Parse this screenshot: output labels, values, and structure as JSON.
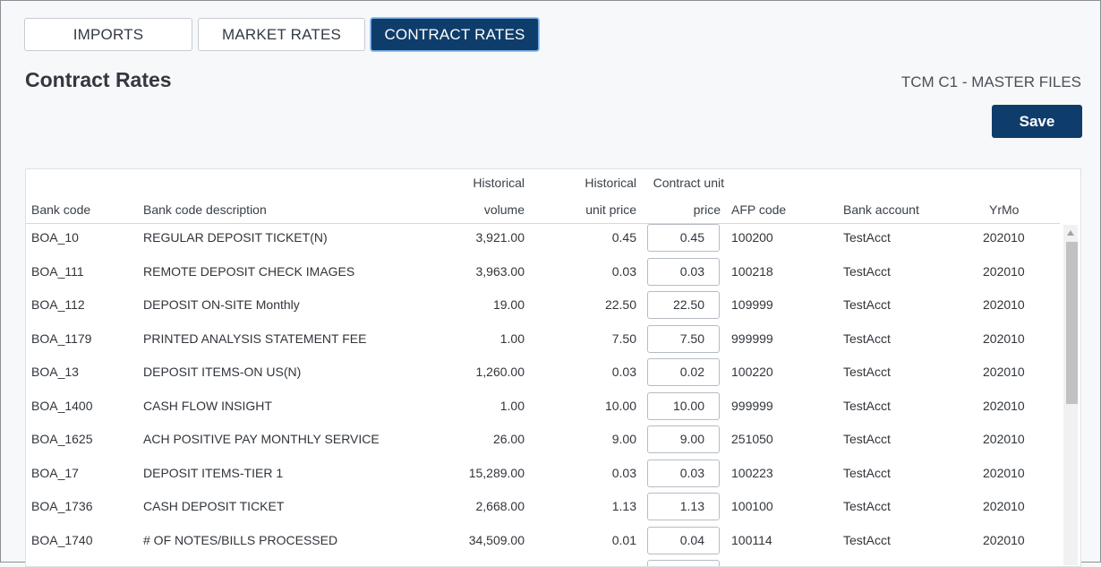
{
  "tabs": [
    {
      "label": "IMPORTS",
      "active": false
    },
    {
      "label": "MARKET RATES",
      "active": false
    },
    {
      "label": "CONTRACT RATES",
      "active": true
    }
  ],
  "page": {
    "title": "Contract Rates",
    "subtitle": "TCM C1 - MASTER FILES",
    "save_label": "Save"
  },
  "table": {
    "headers": {
      "bank_code": "Bank code",
      "description": "Bank code description",
      "volume_1": "Historical",
      "volume_2": "volume",
      "hist_price_1": "Historical",
      "hist_price_2": "unit price",
      "contract_price_1": "Contract unit",
      "contract_price_2": "price",
      "afp_code": "AFP code",
      "bank_account": "Bank account",
      "yrmo": "YrMo"
    },
    "rows": [
      {
        "bank_code": "BOA_10",
        "description": "REGULAR DEPOSIT TICKET(N)",
        "volume": "3,921.00",
        "hist_price": "0.45",
        "contract_price": "0.45",
        "afp_code": "100200",
        "bank_account": "TestAcct",
        "yrmo": "202010"
      },
      {
        "bank_code": "BOA_111",
        "description": "REMOTE DEPOSIT CHECK IMAGES",
        "volume": "3,963.00",
        "hist_price": "0.03",
        "contract_price": "0.03",
        "afp_code": "100218",
        "bank_account": "TestAcct",
        "yrmo": "202010"
      },
      {
        "bank_code": "BOA_112",
        "description": "DEPOSIT ON-SITE Monthly",
        "volume": "19.00",
        "hist_price": "22.50",
        "contract_price": "22.50",
        "afp_code": "109999",
        "bank_account": "TestAcct",
        "yrmo": "202010"
      },
      {
        "bank_code": "BOA_1179",
        "description": "PRINTED ANALYSIS STATEMENT FEE",
        "volume": "1.00",
        "hist_price": "7.50",
        "contract_price": "7.50",
        "afp_code": "999999",
        "bank_account": "TestAcct",
        "yrmo": "202010"
      },
      {
        "bank_code": "BOA_13",
        "description": "DEPOSIT ITEMS-ON US(N)",
        "volume": "1,260.00",
        "hist_price": "0.03",
        "contract_price": "0.02",
        "afp_code": "100220",
        "bank_account": "TestAcct",
        "yrmo": "202010"
      },
      {
        "bank_code": "BOA_1400",
        "description": "CASH FLOW INSIGHT",
        "volume": "1.00",
        "hist_price": "10.00",
        "contract_price": "10.00",
        "afp_code": "999999",
        "bank_account": "TestAcct",
        "yrmo": "202010"
      },
      {
        "bank_code": "BOA_1625",
        "description": "ACH POSITIVE PAY MONTHLY SERVICE",
        "volume": "26.00",
        "hist_price": "9.00",
        "contract_price": "9.00",
        "afp_code": "251050",
        "bank_account": "TestAcct",
        "yrmo": "202010"
      },
      {
        "bank_code": "BOA_17",
        "description": "DEPOSIT ITEMS-TIER 1",
        "volume": "15,289.00",
        "hist_price": "0.03",
        "contract_price": "0.03",
        "afp_code": "100223",
        "bank_account": "TestAcct",
        "yrmo": "202010"
      },
      {
        "bank_code": "BOA_1736",
        "description": "CASH DEPOSIT TICKET",
        "volume": "2,668.00",
        "hist_price": "1.13",
        "contract_price": "1.13",
        "afp_code": "100100",
        "bank_account": "TestAcct",
        "yrmo": "202010"
      },
      {
        "bank_code": "BOA_1740",
        "description": "# OF NOTES/BILLS PROCESSED",
        "volume": "34,509.00",
        "hist_price": "0.01",
        "contract_price": "0.04",
        "afp_code": "100114",
        "bank_account": "TestAcct",
        "yrmo": "202010"
      }
    ]
  },
  "colors": {
    "accent": "#0f3d6b",
    "tab_active_border": "#6fa6e0"
  }
}
